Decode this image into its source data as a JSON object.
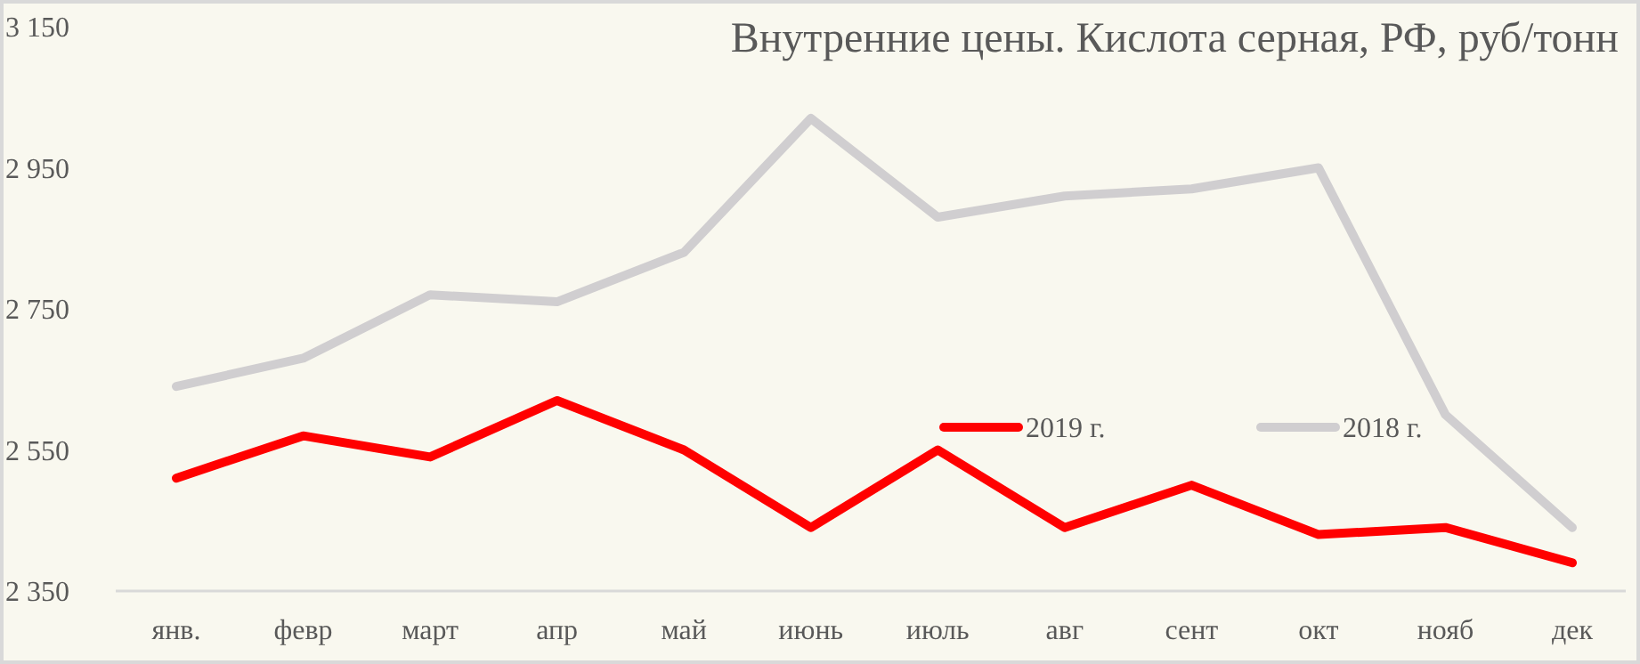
{
  "chart_data": {
    "type": "line",
    "title": "Внутренние цены. Кислота серная, РФ, руб/тонн",
    "categories": [
      "янв.",
      "февр",
      "март",
      "апр",
      "май",
      "июнь",
      "июль",
      "авг",
      "сент",
      "окт",
      "нояб",
      "дек"
    ],
    "series": [
      {
        "name": "2019 г.",
        "color": "#ff0000",
        "values": [
          2510,
          2570,
          2540,
          2620,
          2550,
          2440,
          2550,
          2440,
          2500,
          2430,
          2440,
          2390
        ]
      },
      {
        "name": "2018 г.",
        "color": "#d0ced0",
        "values": [
          2640,
          2680,
          2770,
          2760,
          2830,
          3020,
          2880,
          2910,
          2920,
          2950,
          2600,
          2440
        ]
      }
    ],
    "ylim": [
      2350,
      3150
    ],
    "yticks": [
      {
        "value": 2350,
        "label": "2 350"
      },
      {
        "value": 2550,
        "label": "2 550"
      },
      {
        "value": 2750,
        "label": "2 750"
      },
      {
        "value": 2950,
        "label": "2 950"
      },
      {
        "value": 3150,
        "label": "3 150"
      }
    ],
    "grid": false,
    "legend": "right",
    "marker": "none",
    "line_style": "solid"
  }
}
